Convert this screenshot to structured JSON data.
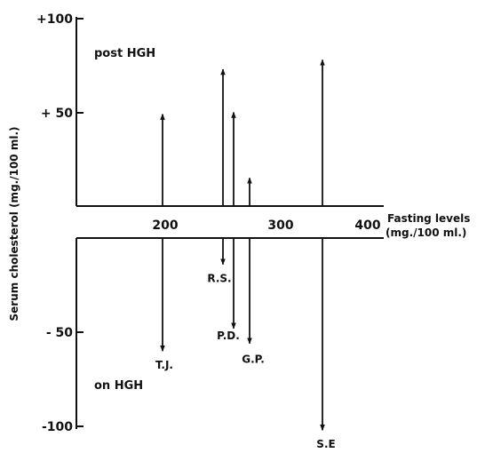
{
  "chart_data": {
    "type": "arrow",
    "title": "",
    "ylabel": "Serum cholesterol (mg./100 ml.)",
    "xlabel_line1": "Fasting levels",
    "xlabel_line2": "(mg./100 ml.)",
    "x_ticks": [
      {
        "value": 200,
        "label": "200"
      },
      {
        "value": 300,
        "label": "300"
      },
      {
        "value": 400,
        "label": "400"
      }
    ],
    "upper_panel": {
      "annotation": "post HGH",
      "ylim": [
        0,
        100
      ],
      "y_ticks": [
        {
          "value": 100,
          "label": "+100"
        },
        {
          "value": 50,
          "label": "+ 50"
        }
      ]
    },
    "lower_panel": {
      "annotation": "on HGH",
      "ylim": [
        0,
        -100
      ],
      "y_ticks": [
        {
          "value": -50,
          "label": "- 50"
        },
        {
          "value": -100,
          "label": "-100"
        }
      ]
    },
    "post_hgh_increase": [
      {
        "x": 200,
        "value": 49
      },
      {
        "x": 268,
        "value": 73
      },
      {
        "x": 280,
        "value": 50
      },
      {
        "x": 298,
        "value": 15
      },
      {
        "x": 380,
        "value": 78
      }
    ],
    "on_hgh_decrease": [
      {
        "x": 200,
        "value": -60,
        "label": "T.J."
      },
      {
        "x": 268,
        "value": -14,
        "label": "R.S."
      },
      {
        "x": 280,
        "value": -48,
        "label": "P.D."
      },
      {
        "x": 298,
        "value": -56,
        "label": "G.P."
      },
      {
        "x": 380,
        "value": -102,
        "label": "S.E"
      }
    ],
    "colors": {
      "ink": "#111111",
      "background": "#ffffff"
    }
  }
}
